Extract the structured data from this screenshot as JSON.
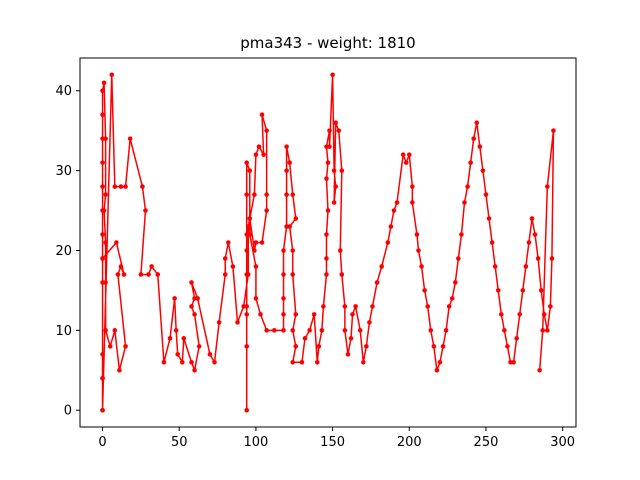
{
  "chart_data": {
    "type": "line",
    "title": "pma343 - weight: 1810",
    "xlabel": "",
    "ylabel": "",
    "xlim": [
      -14.7,
      308.7
    ],
    "ylim": [
      -2.1,
      44.1
    ],
    "xticks": [
      0,
      50,
      100,
      150,
      200,
      250,
      300
    ],
    "yticks": [
      0,
      10,
      20,
      30,
      40
    ],
    "grid": false,
    "series": [
      {
        "color": "#ff0000",
        "marker": "circle",
        "points": [
          [
            0,
            0
          ],
          [
            0,
            4
          ],
          [
            0,
            7
          ],
          [
            0,
            16
          ],
          [
            0,
            19
          ],
          [
            0,
            22
          ],
          [
            0,
            25
          ],
          [
            0,
            28
          ],
          [
            0,
            31
          ],
          [
            0,
            34
          ],
          [
            0,
            37
          ],
          [
            0,
            40
          ],
          [
            1,
            41
          ],
          [
            2,
            34
          ],
          [
            2,
            27
          ],
          [
            1,
            25
          ],
          [
            2,
            21
          ],
          [
            2,
            16
          ],
          [
            2,
            10
          ],
          [
            5,
            8
          ],
          [
            8,
            10
          ],
          [
            11,
            5
          ],
          [
            15,
            8
          ],
          [
            10,
            17
          ],
          [
            12,
            18
          ],
          [
            14,
            17
          ],
          [
            9,
            21
          ],
          [
            0,
            19
          ],
          [
            0,
            4
          ],
          [
            0,
            0
          ],
          [
            6,
            42
          ],
          [
            8,
            28
          ],
          [
            12,
            28
          ],
          [
            15,
            28
          ],
          [
            18,
            34
          ],
          [
            26,
            28
          ],
          [
            28,
            25
          ],
          [
            25,
            17
          ],
          [
            30,
            17
          ],
          [
            32,
            18
          ],
          [
            36,
            17
          ],
          [
            40,
            6
          ],
          [
            44,
            9
          ],
          [
            47,
            14
          ],
          [
            48,
            10
          ],
          [
            49,
            7
          ],
          [
            52,
            6
          ],
          [
            53,
            9
          ],
          [
            58,
            6
          ],
          [
            60,
            5
          ],
          [
            63,
            8
          ],
          [
            60,
            12
          ],
          [
            58,
            13
          ],
          [
            60,
            14
          ],
          [
            58,
            16
          ],
          [
            62,
            14
          ],
          [
            70,
            7
          ],
          [
            73,
            6
          ],
          [
            76,
            11
          ],
          [
            80,
            17
          ],
          [
            80,
            19
          ],
          [
            82,
            21
          ],
          [
            85,
            18
          ],
          [
            88,
            11
          ],
          [
            92,
            13
          ],
          [
            95,
            17
          ],
          [
            95,
            23
          ],
          [
            99,
            27
          ],
          [
            100,
            32
          ],
          [
            102,
            33
          ],
          [
            105,
            32
          ],
          [
            104,
            37
          ],
          [
            107,
            35
          ],
          [
            107,
            27
          ],
          [
            107,
            25
          ],
          [
            104,
            21
          ],
          [
            100,
            21
          ],
          [
            99,
            20
          ],
          [
            96,
            24
          ],
          [
            94,
            22
          ],
          [
            94,
            13
          ],
          [
            94,
            0
          ],
          [
            94,
            8
          ],
          [
            94,
            12
          ],
          [
            94,
            17
          ],
          [
            94,
            20
          ],
          [
            94,
            27
          ],
          [
            94,
            31
          ],
          [
            96,
            30
          ],
          [
            96,
            22
          ],
          [
            100,
            18
          ],
          [
            100,
            14
          ],
          [
            103,
            12
          ],
          [
            107,
            10
          ],
          [
            112,
            10
          ],
          [
            118,
            10
          ],
          [
            118,
            12
          ],
          [
            118,
            14
          ],
          [
            118,
            17
          ],
          [
            118,
            20
          ],
          [
            120,
            23
          ],
          [
            120,
            27
          ],
          [
            120,
            30
          ],
          [
            120,
            33
          ],
          [
            122,
            31
          ],
          [
            124,
            27
          ],
          [
            126,
            24
          ],
          [
            122,
            23
          ],
          [
            124,
            20
          ],
          [
            124,
            17
          ],
          [
            126,
            12
          ],
          [
            124,
            10
          ],
          [
            126,
            8
          ],
          [
            124,
            6
          ],
          [
            130,
            6
          ],
          [
            132,
            9
          ],
          [
            135,
            10
          ],
          [
            138,
            12
          ],
          [
            140,
            6
          ],
          [
            141,
            8
          ],
          [
            143,
            10
          ],
          [
            144,
            13
          ],
          [
            146,
            17
          ],
          [
            146,
            19
          ],
          [
            146,
            22
          ],
          [
            147,
            25
          ],
          [
            146,
            29
          ],
          [
            147,
            31
          ],
          [
            146,
            33
          ],
          [
            148,
            35
          ],
          [
            148,
            33
          ],
          [
            150,
            42
          ],
          [
            151,
            30
          ],
          [
            152,
            28
          ],
          [
            151,
            26
          ],
          [
            152,
            36
          ],
          [
            154,
            35
          ],
          [
            156,
            30
          ],
          [
            155,
            20
          ],
          [
            156,
            17
          ],
          [
            158,
            13
          ],
          [
            158,
            10
          ],
          [
            160,
            7
          ],
          [
            162,
            9
          ],
          [
            163,
            12
          ],
          [
            165,
            13
          ],
          [
            168,
            10
          ],
          [
            170,
            6
          ],
          [
            172,
            8
          ],
          [
            174,
            11
          ],
          [
            176,
            13
          ],
          [
            179,
            16
          ],
          [
            182,
            18
          ],
          [
            186,
            21
          ],
          [
            188,
            23
          ],
          [
            190,
            25
          ],
          [
            192,
            26
          ],
          [
            196,
            32
          ],
          [
            198,
            31
          ],
          [
            200,
            32
          ],
          [
            202,
            28
          ],
          [
            202,
            26
          ],
          [
            205,
            22
          ],
          [
            206,
            20
          ],
          [
            208,
            18
          ],
          [
            210,
            15
          ],
          [
            212,
            13
          ],
          [
            214,
            10
          ],
          [
            216,
            8
          ],
          [
            218,
            5
          ],
          [
            220,
            6
          ],
          [
            222,
            8
          ],
          [
            224,
            10
          ],
          [
            226,
            13
          ],
          [
            228,
            14
          ],
          [
            230,
            16
          ],
          [
            232,
            19
          ],
          [
            234,
            22
          ],
          [
            236,
            26
          ],
          [
            238,
            28
          ],
          [
            240,
            31
          ],
          [
            242,
            34
          ],
          [
            244,
            36
          ],
          [
            246,
            33
          ],
          [
            248,
            30
          ],
          [
            250,
            27
          ],
          [
            252,
            24
          ],
          [
            254,
            21
          ],
          [
            256,
            18
          ],
          [
            258,
            15
          ],
          [
            260,
            12
          ],
          [
            262,
            10
          ],
          [
            264,
            8
          ],
          [
            266,
            6
          ],
          [
            268,
            6
          ],
          [
            270,
            9
          ],
          [
            272,
            12
          ],
          [
            274,
            15
          ],
          [
            276,
            18
          ],
          [
            278,
            21
          ],
          [
            280,
            24
          ],
          [
            282,
            22
          ],
          [
            284,
            19
          ],
          [
            286,
            15
          ],
          [
            288,
            12
          ],
          [
            290,
            10
          ],
          [
            292,
            13
          ],
          [
            293,
            19
          ],
          [
            294,
            35
          ],
          [
            290,
            28
          ],
          [
            287,
            10
          ],
          [
            285,
            5
          ]
        ]
      }
    ]
  }
}
